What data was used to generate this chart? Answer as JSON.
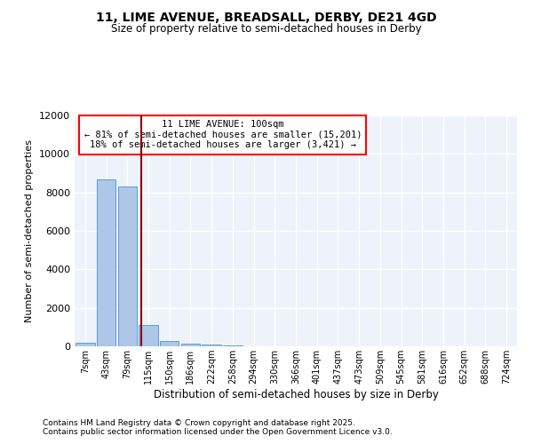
{
  "title1": "11, LIME AVENUE, BREADSALL, DERBY, DE21 4GD",
  "title2": "Size of property relative to semi-detached houses in Derby",
  "xlabel": "Distribution of semi-detached houses by size in Derby",
  "ylabel": "Number of semi-detached properties",
  "categories": [
    "7sqm",
    "43sqm",
    "79sqm",
    "115sqm",
    "150sqm",
    "186sqm",
    "222sqm",
    "258sqm",
    "294sqm",
    "330sqm",
    "366sqm",
    "401sqm",
    "437sqm",
    "473sqm",
    "509sqm",
    "545sqm",
    "581sqm",
    "616sqm",
    "652sqm",
    "688sqm",
    "724sqm"
  ],
  "values": [
    200,
    8700,
    8300,
    1100,
    300,
    120,
    80,
    30,
    0,
    0,
    0,
    0,
    0,
    0,
    0,
    0,
    0,
    0,
    0,
    0,
    0
  ],
  "bar_color": "#aec6e8",
  "bar_edge_color": "#5a9fd4",
  "ylim": [
    0,
    12000
  ],
  "yticks": [
    0,
    2000,
    4000,
    6000,
    8000,
    10000,
    12000
  ],
  "red_line_x": 2.67,
  "ann_line1": "11 LIME AVENUE: 100sqm",
  "ann_line2": "← 81% of semi-detached houses are smaller (15,201)",
  "ann_line3": "18% of semi-detached houses are larger (3,421) →",
  "footnote1": "Contains HM Land Registry data © Crown copyright and database right 2025.",
  "footnote2": "Contains public sector information licensed under the Open Government Licence v3.0.",
  "background_color": "#eef2fa",
  "grid_color": "#ffffff",
  "fig_bg": "#ffffff"
}
